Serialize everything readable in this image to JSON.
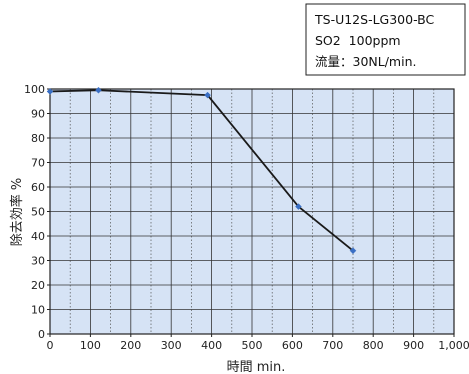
{
  "chart_data": {
    "type": "line",
    "title": "",
    "xlabel": "時間 min.",
    "ylabel": "除去効率 %",
    "xlim": [
      0,
      1000
    ],
    "ylim": [
      0,
      100
    ],
    "x_ticks": [
      "0",
      "100",
      "200",
      "300",
      "400",
      "500",
      "600",
      "700",
      "800",
      "900",
      "1,000"
    ],
    "y_ticks": [
      "0",
      "10",
      "20",
      "30",
      "40",
      "50",
      "60",
      "70",
      "80",
      "90",
      "100"
    ],
    "grid": true,
    "series": [
      {
        "x": [
          0,
          120,
          390,
          615,
          750
        ],
        "y": [
          99,
          99.5,
          97.5,
          52,
          34
        ]
      }
    ],
    "annotation": {
      "lines": [
        "TS-U12S-LG300-BC",
        "SO2  100ppm",
        "流量：30NL/min."
      ]
    },
    "colors": {
      "plot_bg": "#d6e3f5",
      "line": "#1a1a1a",
      "marker": "#3a6fc4"
    }
  }
}
